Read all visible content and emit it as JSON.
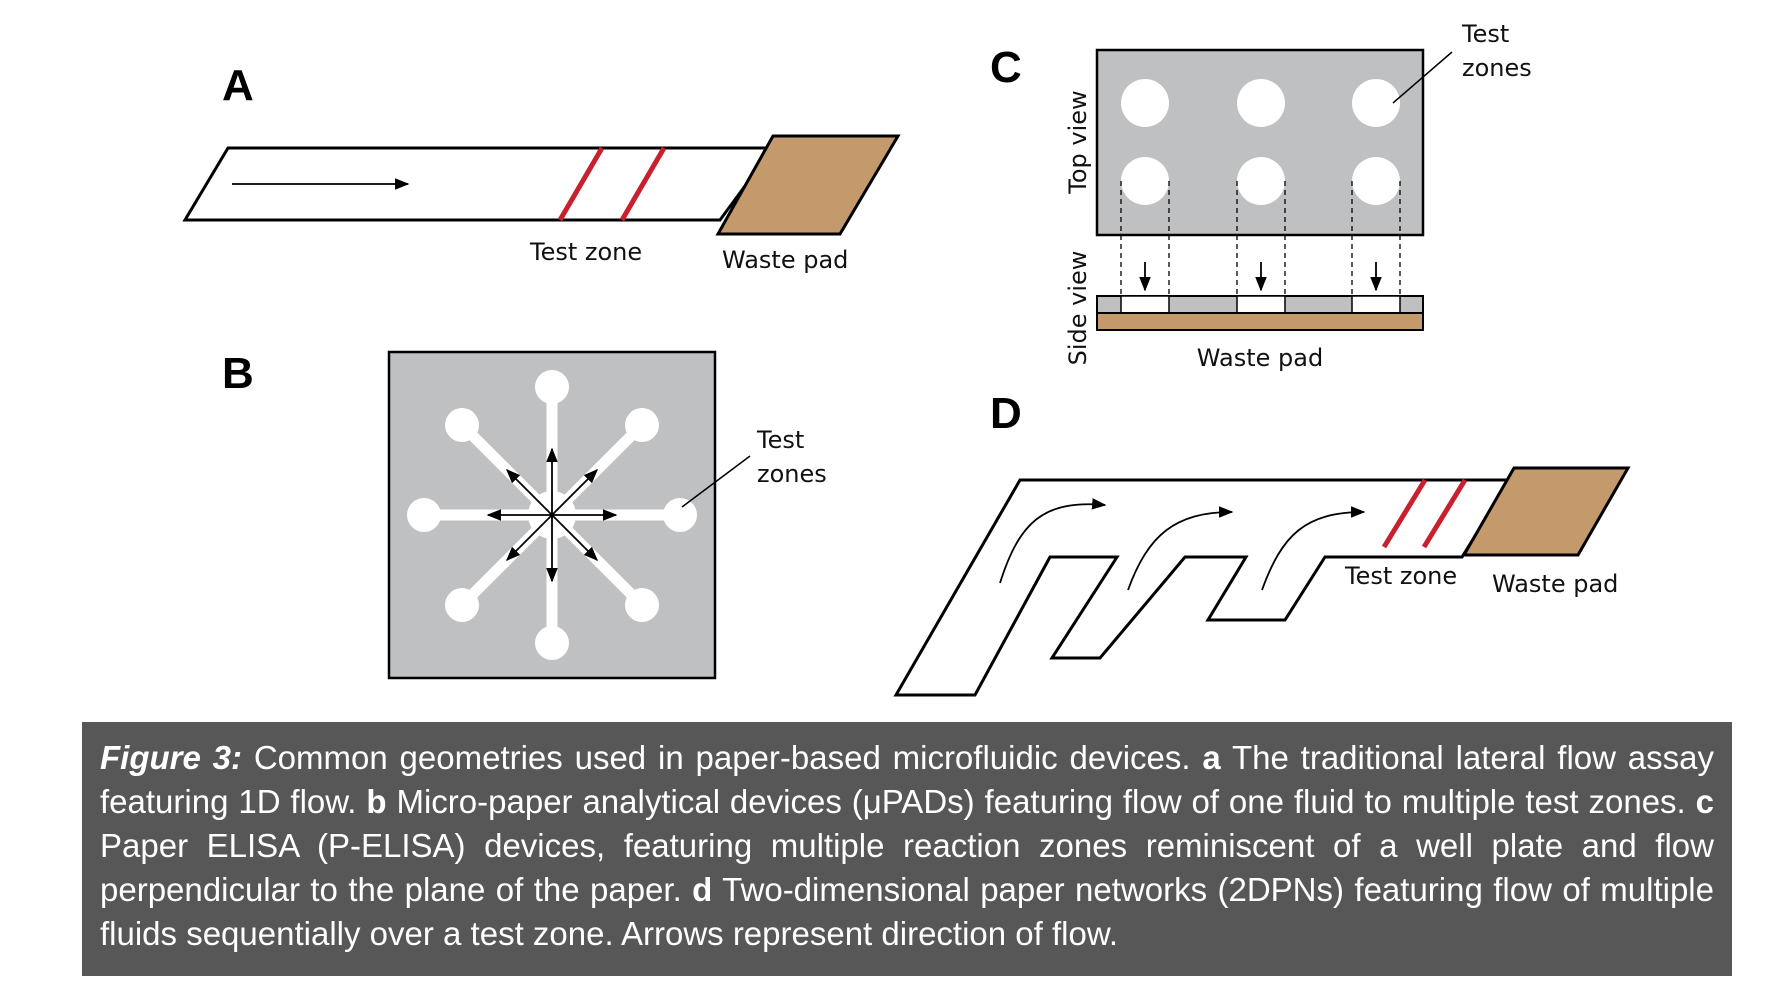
{
  "panels": {
    "a": {
      "letter": "A",
      "test_zone_label": "Test zone",
      "waste_pad_label": "Waste pad"
    },
    "b": {
      "letter": "B",
      "test_zones_label_1": "Test",
      "test_zones_label_2": "zones"
    },
    "c": {
      "letter": "C",
      "top_view_label": "Top view",
      "side_view_label": "Side view",
      "test_zones_label_1": "Test",
      "test_zones_label_2": "zones",
      "waste_pad_label": "Waste pad"
    },
    "d": {
      "letter": "D",
      "test_zone_label": "Test zone",
      "waste_pad_label": "Waste pad"
    }
  },
  "colors": {
    "test_line": "#c8202e",
    "waste_pad": "#c49a6c",
    "paper_gray": "#bfc0c2",
    "caption_bg": "#575757"
  },
  "caption": {
    "figure_label": "Figure 3:",
    "intro": "Common geometries used in paper-based microfluidic devices.",
    "a_key": "a",
    "a_text": "The traditional lateral flow assay featuring 1D flow.",
    "b_key": "b",
    "b_text": "Micro-paper analytical devices (μPADs) featuring flow of one fluid to multiple test zones.",
    "c_key": "c",
    "c_text": "Paper ELISA (P-ELISA) devices, featuring multiple reaction zones reminiscent of a well plate and flow perpendicular to the plane of the paper.",
    "d_key": "d",
    "d_text": "Two-dimensional paper networks (2DPNs) featuring flow of multiple fluids sequentially over a test zone. Arrows represent direction of flow."
  }
}
